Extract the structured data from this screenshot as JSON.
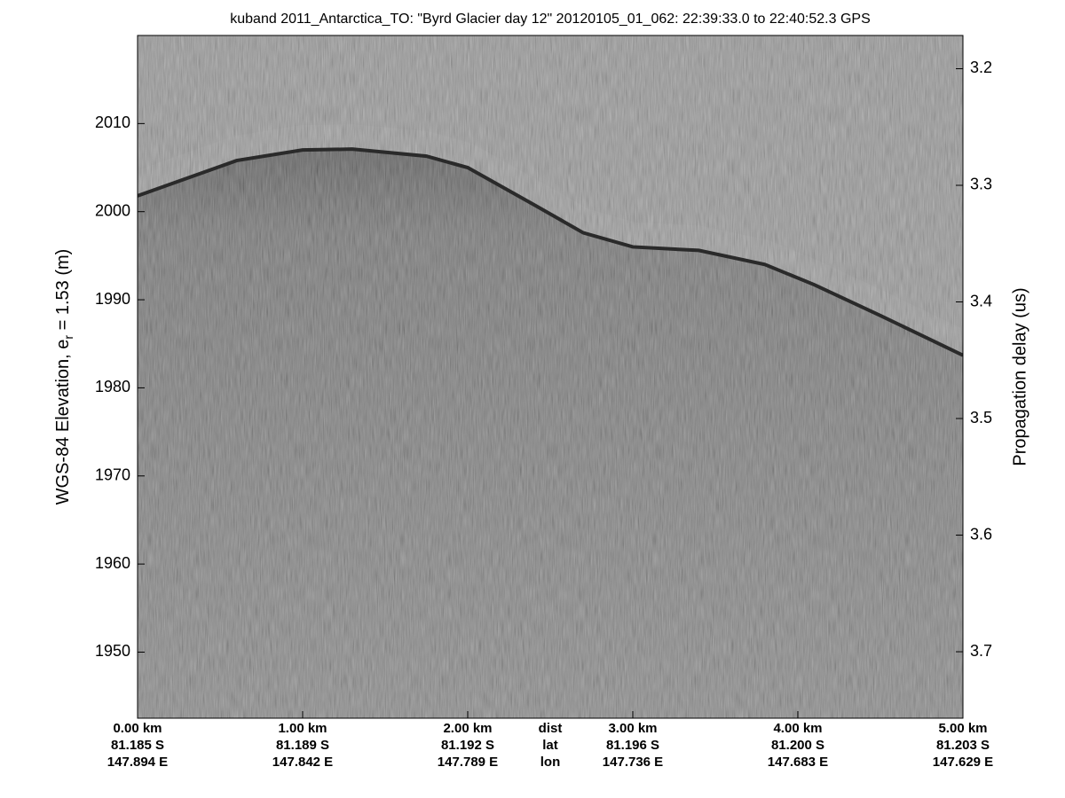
{
  "chart_data": {
    "type": "echogram",
    "title": "kuband 2011_Antarctica_TO: \"Byrd Glacier day 12\"  20120105_01_062: 22:39:33.0 to 22:40:52.3 GPS",
    "ylabel": "WGS-84 Elevation, e",
    "ylabel_sub": "r",
    "ylabel_end": " = 1.53 (m)",
    "y2label": "Propagation delay (us)",
    "xlim": [
      0,
      5
    ],
    "xticks": [
      {
        "value": 0,
        "label": "0.00 km"
      },
      {
        "value": 1,
        "label": "1.00 km"
      },
      {
        "value": 2,
        "label": "2.00 km"
      },
      {
        "value": 3,
        "label": "3.00 km"
      },
      {
        "value": 4,
        "label": "4.00 km"
      },
      {
        "value": 5,
        "label": "5.00 km"
      }
    ],
    "lat_labels": [
      "81.185 S",
      "81.189 S",
      "81.192 S",
      "81.196 S",
      "81.200 S",
      "81.203 S"
    ],
    "lon_labels": [
      "147.894 E",
      "147.842 E",
      "147.789 E",
      "147.736 E",
      "147.683 E",
      "147.629 E"
    ],
    "row_labels": [
      "dist",
      "lat",
      "lon"
    ],
    "ylim": [
      1942.5,
      2020
    ],
    "yticks": [
      1950,
      1960,
      1970,
      1980,
      1990,
      2000,
      2010
    ],
    "y2lim": [
      3.757,
      3.1715
    ],
    "y2ticks": [
      3.2,
      3.3,
      3.4,
      3.5,
      3.6,
      3.7
    ],
    "x": [
      0,
      0.6,
      1.0,
      1.3,
      1.75,
      2.0,
      2.4,
      2.7,
      3.0,
      3.4,
      3.8,
      4.1,
      4.5,
      5.0
    ],
    "values": [
      2001.8,
      2005.8,
      2007,
      2007.1,
      2006.3,
      2005,
      2000.8,
      1997.6,
      1996,
      1995.6,
      1994,
      1991.7,
      1988.2,
      1983.7
    ]
  }
}
